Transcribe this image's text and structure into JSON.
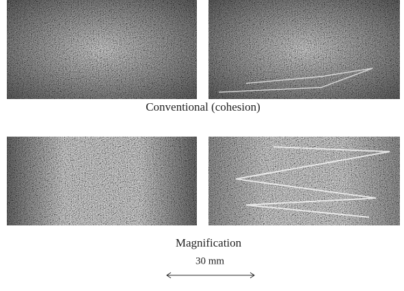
{
  "figure": {
    "captions": [
      "Conventional (cohesion)",
      "Magnification"
    ],
    "scale_label": "30 mm"
  }
}
